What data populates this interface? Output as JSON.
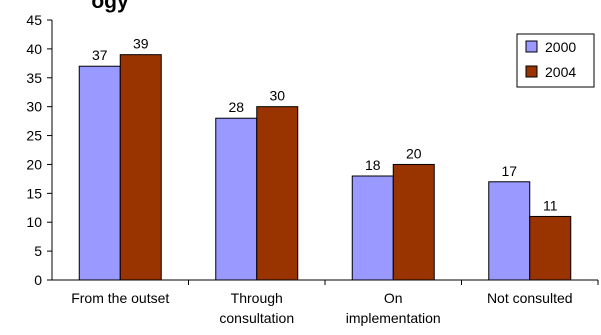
{
  "chart_data": {
    "type": "bar",
    "title": "",
    "title_fragment": "ogy",
    "xlabel": "",
    "ylabel": "",
    "ylim": [
      0,
      45
    ],
    "yticks": [
      0,
      5,
      10,
      15,
      20,
      25,
      30,
      35,
      40,
      45
    ],
    "grid": false,
    "legend_position": "top-right",
    "categories": [
      [
        "From the outset"
      ],
      [
        "Through",
        "consultation"
      ],
      [
        "On",
        "implementation"
      ],
      [
        "Not consulted"
      ]
    ],
    "series": [
      {
        "name": "2000",
        "color": "#9999ff",
        "values": [
          37,
          28,
          18,
          17
        ]
      },
      {
        "name": "2004",
        "color": "#993300",
        "values": [
          39,
          30,
          20,
          11
        ]
      }
    ],
    "data_labels": true
  }
}
